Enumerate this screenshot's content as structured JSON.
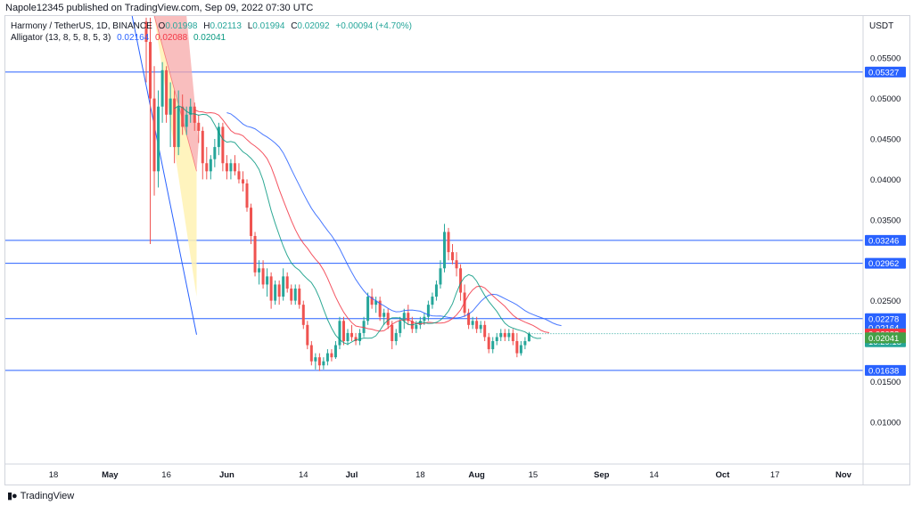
{
  "publisher": "Napole12345 published on TradingView.com, Sep 09, 2022 07:30 UTC",
  "legend": {
    "symbol": "Harmony / TetherUS, 1D, BINANCE",
    "o_label": "O",
    "o": "0.01998",
    "h_label": "H",
    "h": "0.02113",
    "l_label": "L",
    "l": "0.01994",
    "c_label": "C",
    "c": "0.02092",
    "change": "+0.00094 (+4.70%)",
    "indicator": "Alligator (13, 8, 5, 8, 5, 3)",
    "jaw": "0.02164",
    "teeth": "0.02088",
    "lips": "0.02041"
  },
  "footer": {
    "brand": "TradingView"
  },
  "colors": {
    "up": "#26a69a",
    "down": "#ef5350",
    "jaw": "#2962ff",
    "teeth": "#f23645",
    "lips": "#089981",
    "hline": "#2962ff",
    "text": "#131722",
    "axis": "#787b86"
  },
  "chart_data": {
    "type": "candlestick",
    "y_axis_title": "USDT",
    "ylim": [
      0.0048,
      0.0602
    ],
    "y_ticks": [
      "0.01000",
      "0.01500",
      "0.02500",
      "0.03500",
      "0.04000",
      "0.04500",
      "0.05000",
      "0.05500"
    ],
    "x_ticks": [
      "18",
      "May",
      "16",
      "Jun",
      "14",
      "Jul",
      "18",
      "Aug",
      "15",
      "Sep",
      "14",
      "Oct",
      "17",
      "Nov"
    ],
    "horizontal_lines": [
      0.05327,
      0.03246,
      0.02962,
      0.02278,
      0.01638
    ],
    "price_labels": [
      {
        "text": "0.05327",
        "value": 0.05327,
        "bg": "#2962ff",
        "fg": "#ffffff"
      },
      {
        "text": "0.03246",
        "value": 0.03246,
        "bg": "#2962ff",
        "fg": "#ffffff"
      },
      {
        "text": "0.02962",
        "value": 0.02962,
        "bg": "#2962ff",
        "fg": "#ffffff"
      },
      {
        "text": "0.02278",
        "value": 0.02278,
        "bg": "#2962ff",
        "fg": "#ffffff"
      },
      {
        "text": "0.02164",
        "value": 0.02164,
        "bg": "#2962ff",
        "fg": "#ffffff"
      },
      {
        "text": "0.02092",
        "value": 0.02092,
        "bg": "#26a69a",
        "fg": "#ffffff"
      },
      {
        "text": "16:29:18",
        "value": 0.01992,
        "bg": "#26a69a",
        "fg": "#ffffff"
      },
      {
        "text": "0.02088",
        "value": 0.02088,
        "bg": "#f23645",
        "fg": "#ffffff"
      },
      {
        "text": "0.02041",
        "value": 0.02041,
        "bg": "#43a047",
        "fg": "#ffffff"
      },
      {
        "text": "0.01638",
        "value": 0.01638,
        "bg": "#2962ff",
        "fg": "#ffffff"
      }
    ],
    "candles_start": "2022-05-11",
    "ohlc": [
      [
        0.0595,
        0.06,
        0.052,
        0.057
      ],
      [
        0.057,
        0.06,
        0.032,
        0.05
      ],
      [
        0.05,
        0.054,
        0.038,
        0.041
      ],
      [
        0.041,
        0.051,
        0.039,
        0.049
      ],
      [
        0.049,
        0.0545,
        0.047,
        0.0535
      ],
      [
        0.0535,
        0.054,
        0.047,
        0.048
      ],
      [
        0.048,
        0.052,
        0.044,
        0.05
      ],
      [
        0.05,
        0.051,
        0.042,
        0.044
      ],
      [
        0.044,
        0.051,
        0.043,
        0.049
      ],
      [
        0.049,
        0.0505,
        0.0455,
        0.0465
      ],
      [
        0.0465,
        0.049,
        0.0455,
        0.048
      ],
      [
        0.048,
        0.05,
        0.047,
        0.049
      ],
      [
        0.049,
        0.0495,
        0.046,
        0.047
      ],
      [
        0.047,
        0.048,
        0.0445,
        0.046
      ],
      [
        0.046,
        0.0465,
        0.04,
        0.042
      ],
      [
        0.042,
        0.044,
        0.04,
        0.041
      ],
      [
        0.041,
        0.043,
        0.04,
        0.0425
      ],
      [
        0.0425,
        0.045,
        0.0415,
        0.044
      ],
      [
        0.044,
        0.047,
        0.043,
        0.0465
      ],
      [
        0.0465,
        0.047,
        0.041,
        0.042
      ],
      [
        0.042,
        0.043,
        0.04,
        0.041
      ],
      [
        0.041,
        0.0425,
        0.04,
        0.042
      ],
      [
        0.042,
        0.043,
        0.0405,
        0.041
      ],
      [
        0.041,
        0.042,
        0.0395,
        0.04
      ],
      [
        0.04,
        0.041,
        0.0385,
        0.0395
      ],
      [
        0.0395,
        0.04,
        0.036,
        0.0365
      ],
      [
        0.0365,
        0.037,
        0.032,
        0.033
      ],
      [
        0.033,
        0.0335,
        0.028,
        0.0285
      ],
      [
        0.0285,
        0.03,
        0.027,
        0.029
      ],
      [
        0.029,
        0.03,
        0.0265,
        0.027
      ],
      [
        0.027,
        0.029,
        0.0255,
        0.028
      ],
      [
        0.028,
        0.0285,
        0.024,
        0.025
      ],
      [
        0.025,
        0.0275,
        0.0245,
        0.027
      ],
      [
        0.027,
        0.0275,
        0.0245,
        0.0255
      ],
      [
        0.0255,
        0.029,
        0.025,
        0.028
      ],
      [
        0.028,
        0.0285,
        0.026,
        0.0265
      ],
      [
        0.0265,
        0.027,
        0.0245,
        0.025
      ],
      [
        0.025,
        0.027,
        0.0245,
        0.0265
      ],
      [
        0.0265,
        0.027,
        0.024,
        0.0245
      ],
      [
        0.0245,
        0.025,
        0.0215,
        0.022
      ],
      [
        0.022,
        0.0225,
        0.019,
        0.0195
      ],
      [
        0.0195,
        0.02,
        0.017,
        0.0175
      ],
      [
        0.0175,
        0.0185,
        0.0165,
        0.018
      ],
      [
        0.018,
        0.0185,
        0.0163,
        0.017
      ],
      [
        0.017,
        0.018,
        0.0165,
        0.0175
      ],
      [
        0.0175,
        0.019,
        0.017,
        0.0185
      ],
      [
        0.0185,
        0.019,
        0.0175,
        0.018
      ],
      [
        0.018,
        0.02,
        0.0178,
        0.0195
      ],
      [
        0.0195,
        0.023,
        0.019,
        0.0225
      ],
      [
        0.0225,
        0.023,
        0.0195,
        0.02
      ],
      [
        0.02,
        0.0215,
        0.0195,
        0.021
      ],
      [
        0.021,
        0.022,
        0.02,
        0.0205
      ],
      [
        0.0205,
        0.021,
        0.0195,
        0.02
      ],
      [
        0.02,
        0.0215,
        0.0195,
        0.021
      ],
      [
        0.021,
        0.023,
        0.0205,
        0.0225
      ],
      [
        0.0225,
        0.026,
        0.022,
        0.0255
      ],
      [
        0.0255,
        0.0265,
        0.024,
        0.0245
      ],
      [
        0.0245,
        0.0255,
        0.0235,
        0.025
      ],
      [
        0.025,
        0.0255,
        0.0225,
        0.023
      ],
      [
        0.023,
        0.024,
        0.022,
        0.0235
      ],
      [
        0.0235,
        0.024,
        0.0215,
        0.022
      ],
      [
        0.022,
        0.0225,
        0.019,
        0.02
      ],
      [
        0.02,
        0.0215,
        0.0195,
        0.021
      ],
      [
        0.021,
        0.023,
        0.0205,
        0.0225
      ],
      [
        0.0225,
        0.024,
        0.0215,
        0.0235
      ],
      [
        0.0235,
        0.0245,
        0.022,
        0.0225
      ],
      [
        0.0225,
        0.023,
        0.021,
        0.0215
      ],
      [
        0.0215,
        0.0225,
        0.021,
        0.022
      ],
      [
        0.022,
        0.023,
        0.0215,
        0.0225
      ],
      [
        0.0225,
        0.0235,
        0.022,
        0.023
      ],
      [
        0.023,
        0.025,
        0.0225,
        0.0245
      ],
      [
        0.0245,
        0.026,
        0.024,
        0.0255
      ],
      [
        0.0255,
        0.0275,
        0.025,
        0.027
      ],
      [
        0.027,
        0.03,
        0.0265,
        0.029
      ],
      [
        0.029,
        0.0345,
        0.0285,
        0.0335
      ],
      [
        0.0335,
        0.034,
        0.03,
        0.031
      ],
      [
        0.031,
        0.032,
        0.0295,
        0.03
      ],
      [
        0.03,
        0.031,
        0.028,
        0.029
      ],
      [
        0.029,
        0.0295,
        0.025,
        0.026
      ],
      [
        0.026,
        0.027,
        0.023,
        0.0235
      ],
      [
        0.0235,
        0.024,
        0.0215,
        0.022
      ],
      [
        0.022,
        0.023,
        0.0215,
        0.0225
      ],
      [
        0.0225,
        0.023,
        0.021,
        0.0215
      ],
      [
        0.0215,
        0.0225,
        0.021,
        0.022
      ],
      [
        0.022,
        0.0225,
        0.02,
        0.0205
      ],
      [
        0.0205,
        0.021,
        0.0185,
        0.019
      ],
      [
        0.019,
        0.0205,
        0.0185,
        0.02
      ],
      [
        0.02,
        0.021,
        0.0195,
        0.0205
      ],
      [
        0.0205,
        0.0215,
        0.02,
        0.021
      ],
      [
        0.021,
        0.0215,
        0.02,
        0.0205
      ],
      [
        0.0205,
        0.0215,
        0.02,
        0.021
      ],
      [
        0.021,
        0.0215,
        0.0195,
        0.02
      ],
      [
        0.02,
        0.021,
        0.018,
        0.0185
      ],
      [
        0.0185,
        0.02,
        0.0182,
        0.0195
      ],
      [
        0.0195,
        0.0205,
        0.019,
        0.02
      ],
      [
        0.01998,
        0.02113,
        0.01994,
        0.02092
      ]
    ]
  }
}
